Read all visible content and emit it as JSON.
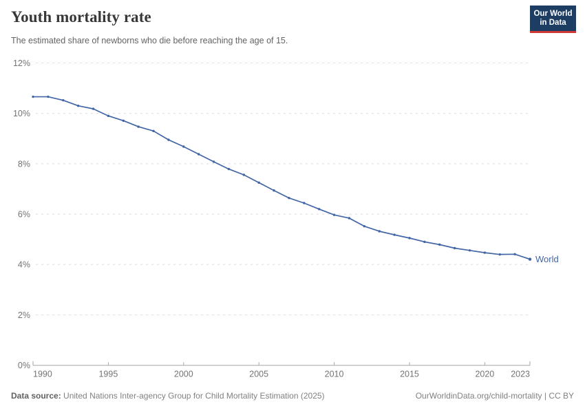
{
  "header": {
    "title": "Youth mortality rate",
    "subtitle": "The estimated share of newborns who die before reaching the age of 15.",
    "logo": {
      "line1": "Our World",
      "line2": "in Data",
      "bg": "#1d3d63",
      "stripe": "#cf3a35"
    }
  },
  "chart_data": {
    "type": "line",
    "title": "Youth mortality rate",
    "subtitle": "The estimated share of newborns who die before reaching the age of 15.",
    "xlabel": "",
    "ylabel": "",
    "xlim": [
      1990,
      2023
    ],
    "ylim": [
      0,
      12
    ],
    "grid": "horizontal-dashed",
    "legend_position": "end-of-line",
    "xticks": [
      1990,
      1995,
      2000,
      2005,
      2010,
      2015,
      2020,
      2023
    ],
    "ytick_values": [
      0,
      2,
      4,
      6,
      8,
      10,
      12
    ],
    "ytick_labels": [
      "0%",
      "2%",
      "4%",
      "6%",
      "8%",
      "10%",
      "12%"
    ],
    "series": [
      {
        "name": "World",
        "color": "#4165a5",
        "unit": "%",
        "x": [
          1990,
          1991,
          1992,
          1993,
          1994,
          1995,
          1996,
          1997,
          1998,
          1999,
          2000,
          2001,
          2002,
          2003,
          2004,
          2005,
          2006,
          2007,
          2008,
          2009,
          2010,
          2011,
          2012,
          2013,
          2014,
          2015,
          2016,
          2017,
          2018,
          2019,
          2020,
          2021,
          2022,
          2023
        ],
        "values": [
          10.66,
          10.66,
          10.52,
          10.3,
          10.18,
          9.9,
          9.71,
          9.47,
          9.3,
          8.95,
          8.68,
          8.38,
          8.08,
          7.79,
          7.56,
          7.25,
          6.94,
          6.64,
          6.44,
          6.2,
          5.97,
          5.84,
          5.52,
          5.32,
          5.18,
          5.05,
          4.9,
          4.79,
          4.65,
          4.56,
          4.47,
          4.4,
          4.41,
          4.21
        ]
      }
    ],
    "axis_colors": {
      "gridline": "#dcdcdc",
      "axis_line": "#a6a6a6",
      "tick_label": "#737373"
    }
  },
  "footer": {
    "source_label": "Data source:",
    "source_text": "United Nations Inter-agency Group for Child Mortality Estimation (2025)",
    "link_text": "OurWorldinData.org/child-mortality | CC BY"
  }
}
